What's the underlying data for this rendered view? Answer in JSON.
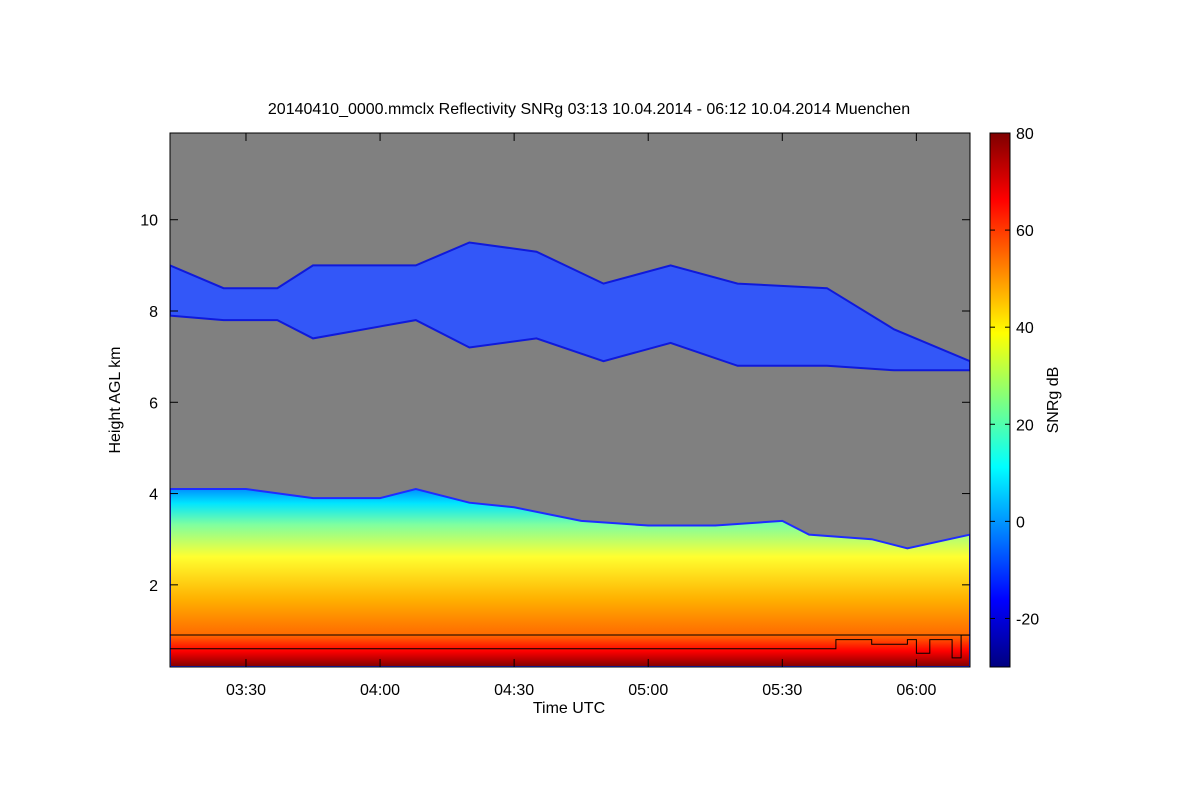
{
  "chart_data": {
    "type": "heatmap",
    "title": "20140410_0000.mmclx Reflectivity SNRg   03:13 10.04.2014 - 06:12 10.04.2014 Muenchen",
    "xlabel": "Time UTC",
    "ylabel": "Height AGL km",
    "x_unit": "UTC time (hh:mm)",
    "xlim": [
      "03:13",
      "06:12"
    ],
    "ylim": [
      0.2,
      11.9
    ],
    "x_ticks": [
      "03:30",
      "04:00",
      "04:30",
      "05:00",
      "05:30",
      "06:00"
    ],
    "y_ticks": [
      2,
      4,
      6,
      8,
      10
    ],
    "colorbar": {
      "label": "SNRg dB",
      "range": [
        -30,
        80
      ],
      "ticks": [
        -20,
        0,
        20,
        40,
        60,
        80
      ],
      "colormap": [
        "#00007f",
        "#0000ff",
        "#007fff",
        "#00ffff",
        "#7fff7f",
        "#ffff00",
        "#ff7f00",
        "#ff0000",
        "#7f0000"
      ]
    },
    "background_color": "#808080",
    "series": [
      {
        "name": "cirrus layer",
        "snr_db_range": [
          -25,
          -5
        ],
        "extent": [
          {
            "time": "03:13",
            "bottom_km": 7.9,
            "top_km": 9.0
          },
          {
            "time": "03:25",
            "bottom_km": 7.8,
            "top_km": 8.5
          },
          {
            "time": "03:37",
            "bottom_km": 7.8,
            "top_km": 8.5
          },
          {
            "time": "03:45",
            "bottom_km": 7.4,
            "top_km": 9.0
          },
          {
            "time": "04:08",
            "bottom_km": 7.8,
            "top_km": 9.0
          },
          {
            "time": "04:20",
            "bottom_km": 7.2,
            "top_km": 9.5
          },
          {
            "time": "04:35",
            "bottom_km": 7.4,
            "top_km": 9.3
          },
          {
            "time": "04:50",
            "bottom_km": 6.9,
            "top_km": 8.6
          },
          {
            "time": "05:05",
            "bottom_km": 7.3,
            "top_km": 9.0
          },
          {
            "time": "05:20",
            "bottom_km": 6.8,
            "top_km": 8.6
          },
          {
            "time": "05:40",
            "bottom_km": 6.8,
            "top_km": 8.5
          },
          {
            "time": "05:55",
            "bottom_km": 6.7,
            "top_km": 7.6
          },
          {
            "time": "06:12",
            "bottom_km": 6.7,
            "top_km": 6.9
          }
        ]
      },
      {
        "name": "lower cloud / precipitation layer",
        "snr_db_range": [
          0,
          75
        ],
        "top_km": [
          {
            "time": "03:13",
            "value": 4.1
          },
          {
            "time": "03:30",
            "value": 4.1
          },
          {
            "time": "03:45",
            "value": 3.9
          },
          {
            "time": "04:00",
            "value": 3.9
          },
          {
            "time": "04:08",
            "value": 4.1
          },
          {
            "time": "04:20",
            "value": 3.8
          },
          {
            "time": "04:30",
            "value": 3.7
          },
          {
            "time": "04:45",
            "value": 3.4
          },
          {
            "time": "05:00",
            "value": 3.3
          },
          {
            "time": "05:15",
            "value": 3.3
          },
          {
            "time": "05:30",
            "value": 3.4
          },
          {
            "time": "05:36",
            "value": 3.1
          },
          {
            "time": "05:50",
            "value": 3.0
          },
          {
            "time": "05:58",
            "value": 2.8
          },
          {
            "time": "06:12",
            "value": 3.1
          }
        ]
      },
      {
        "name": "black line",
        "height_km": [
          {
            "time": "03:13",
            "value": 0.6
          },
          {
            "time": "05:40",
            "value": 0.6
          },
          {
            "time": "05:42",
            "value": 0.8
          },
          {
            "time": "05:50",
            "value": 0.7
          },
          {
            "time": "05:58",
            "value": 0.8
          },
          {
            "time": "06:00",
            "value": 0.5
          },
          {
            "time": "06:03",
            "value": 0.8
          },
          {
            "time": "06:08",
            "value": 0.4
          },
          {
            "time": "06:10",
            "value": 0.9
          },
          {
            "time": "06:12",
            "value": 0.9
          }
        ]
      }
    ],
    "reference_line_km": 0.9
  }
}
